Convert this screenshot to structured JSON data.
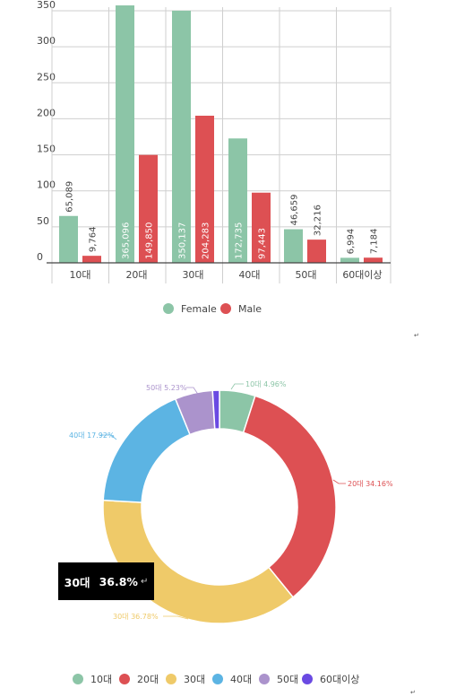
{
  "chart_data": [
    {
      "type": "bar",
      "categories": [
        "10대",
        "20대",
        "30대",
        "40대",
        "50대",
        "60대이상"
      ],
      "series": [
        {
          "name": "Female",
          "color": "#8cc5a7",
          "values": [
            65089,
            365096,
            350137,
            172735,
            46659,
            6994
          ],
          "labels": [
            "65,089",
            "365,096",
            "350,137",
            "172,735",
            "46,659",
            "6,994"
          ]
        },
        {
          "name": "Male",
          "color": "#dd5053",
          "values": [
            9764,
            149850,
            204283,
            97443,
            32216,
            7184
          ],
          "labels": [
            "9,764",
            "149,850",
            "204,283",
            "97,443",
            "32,216",
            "7,184"
          ]
        }
      ],
      "yticks": [
        "0",
        "50",
        "100",
        "150",
        "200",
        "250",
        "300",
        "350"
      ],
      "ylim": [
        0,
        350000
      ],
      "grid": true,
      "legend": "bottom"
    },
    {
      "type": "pie",
      "donut": true,
      "categories": [
        "10대",
        "20대",
        "30대",
        "40대",
        "50대",
        "60대이상"
      ],
      "values": [
        4.96,
        34.16,
        36.78,
        17.92,
        5.23,
        0.95
      ],
      "labels": [
        "10대 4.96%",
        "20대 34.16%",
        "30대 36.78%",
        "40대 17.92%",
        "50대 5.23%",
        ""
      ],
      "colors": [
        "#8cc5a7",
        "#dd5053",
        "#efca69",
        "#5cb4e3",
        "#ab93cc",
        "#6a4ae2"
      ],
      "legend": "bottom"
    }
  ],
  "tooltip": {
    "label": "30대",
    "value": "36.8%",
    "mark": "↵"
  }
}
